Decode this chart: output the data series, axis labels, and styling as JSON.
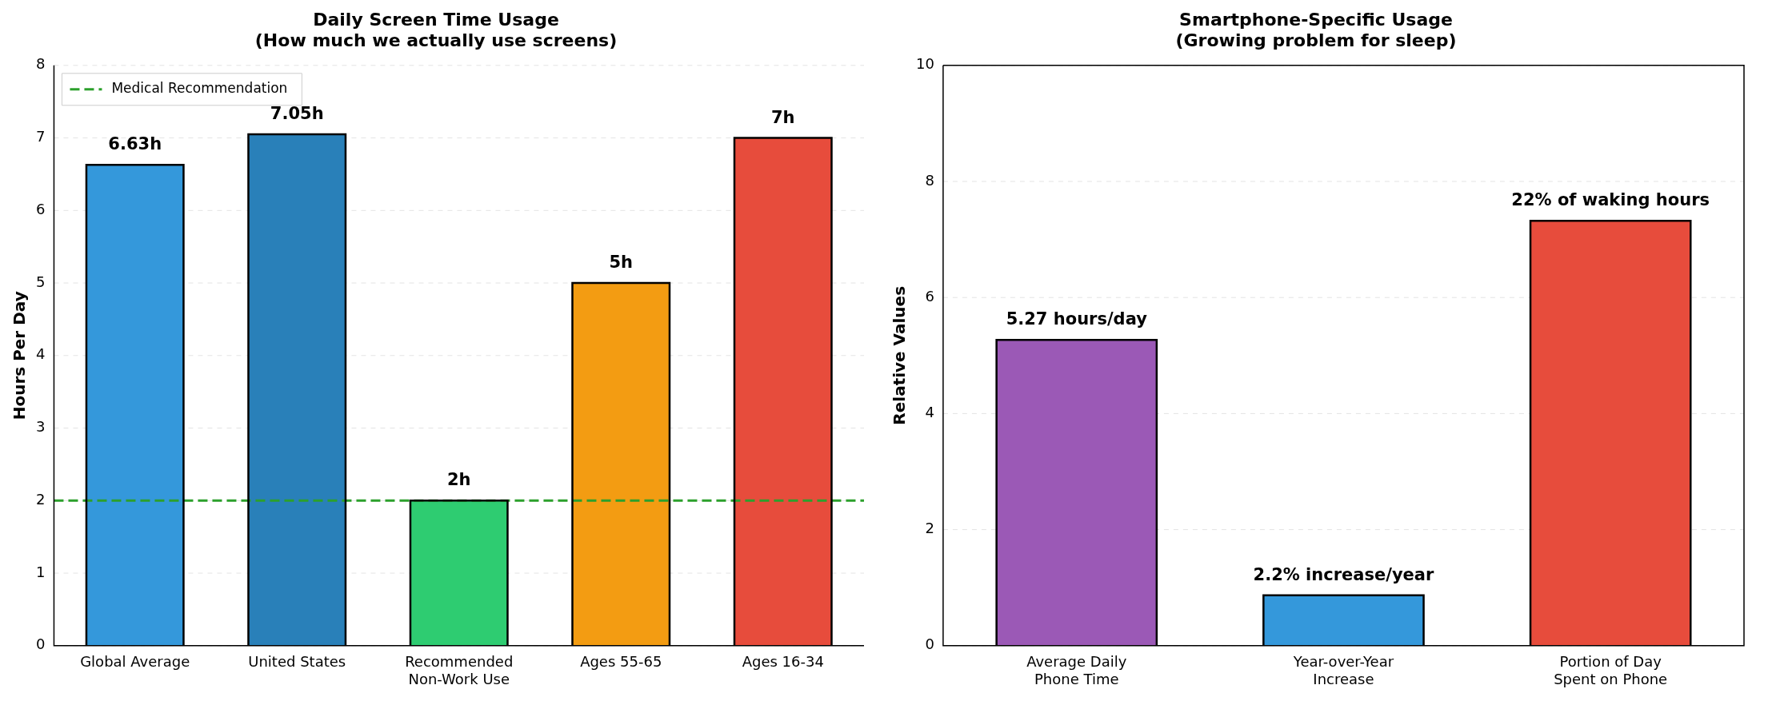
{
  "chart_data": [
    {
      "type": "bar",
      "title": "Daily Screen Time Usage",
      "subtitle": "(How much we actually use screens)",
      "ylabel": "Hours Per Day",
      "categories": [
        "Global Average",
        "United States",
        "Recommended\nNon-Work Use",
        "Ages 55-65",
        "Ages 16-34"
      ],
      "values": [
        6.63,
        7.05,
        2,
        5,
        7
      ],
      "colors": [
        "#3498db",
        "#2980b9",
        "#2ecc71",
        "#f39c12",
        "#e74c3c"
      ],
      "value_labels": [
        "6.63h",
        "7.05h",
        "2h",
        "5h",
        "7h"
      ],
      "ylim": [
        0,
        8
      ],
      "yticks": [
        0,
        1,
        2,
        3,
        4,
        5,
        6,
        7,
        8
      ],
      "grid": "y",
      "legend": "top left",
      "ref_lines": [
        {
          "axis": "y",
          "value": 2,
          "label": "Medical Recommendation",
          "color": "#2ca02c",
          "line_style": "dashed"
        }
      ]
    },
    {
      "type": "bar",
      "title": "Smartphone-Specific Usage",
      "subtitle": "(Growing problem for sleep)",
      "ylabel": "Relative Values",
      "categories": [
        "Average Daily\nPhone Time",
        "Year-over-Year\nIncrease",
        "Portion of Day\nSpent on Phone"
      ],
      "values": [
        5.27,
        0.87,
        7.32
      ],
      "colors": [
        "#9b59b6",
        "#3498db",
        "#e74c3c"
      ],
      "annotations": [
        {
          "text": "5.27 hours/day",
          "x": "Average Daily\nPhone Time",
          "y": 5.27
        },
        {
          "text": "2.2% increase/year",
          "x": "Year-over-Year\nIncrease",
          "y": 0.87
        },
        {
          "text": "22% of waking hours",
          "x": "Portion of Day\nSpent on Phone",
          "y": 7.32
        }
      ],
      "ylim": [
        0,
        10
      ],
      "yticks": [
        0,
        2,
        4,
        6,
        8,
        10
      ],
      "grid": "y"
    }
  ]
}
